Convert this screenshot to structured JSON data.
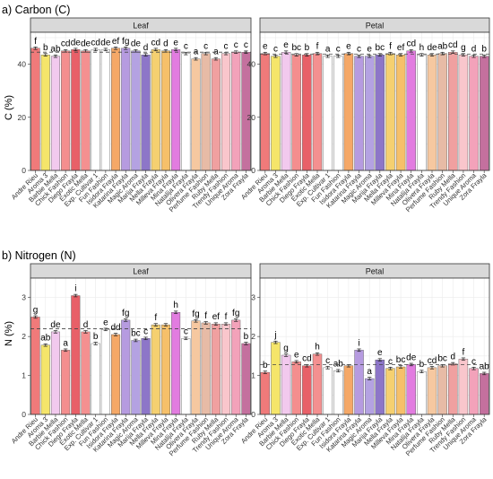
{
  "figure_colors": {
    "panel_bg": "#ffffff",
    "strip_bg": "#d9d9d9",
    "grid": "#ebebeb",
    "border": "#333333",
    "bar_outline": "#555555",
    "dash": "#444444"
  },
  "chart_data": [
    {
      "type": "bar",
      "section_title": "a) Carbon (C)",
      "title": "Leaf",
      "ylabel": "C (%)",
      "ylim": [
        0,
        52
      ],
      "yticks": [
        0,
        20,
        40
      ],
      "grid": true,
      "reference_line": 44.5,
      "categories": [
        "Andre Rieu",
        "Aroma 3",
        "Barbie Mella",
        "Chick Fashion",
        "Diego Frayla",
        "Exotic Mella",
        "Exp. Cultivar 1",
        "Fun Fashion",
        "Isidora Frayla",
        "Katarina Frayla",
        "Magic Aroma",
        "Marija Frayla",
        "Mella Frayla",
        "Milleva Frayla",
        "Mina Frayla",
        "Natalija Frayla",
        "Olivera Frayla",
        "Perfume Fashion",
        "Ruby Mella",
        "Trendy Fashion",
        "Unique Aroma",
        "Zora Frayla"
      ],
      "colors": [
        "#f07a7a",
        "#f5e56a",
        "#f2c9ee",
        "#f48e8e",
        "#e86068",
        "#f49090",
        "#ffffff",
        "#ffffff",
        "#f5a867",
        "#b69be0",
        "#b4a2e2",
        "#8d76c8",
        "#f5d070",
        "#f6c06a",
        "#e27ce0",
        "#ffffff",
        "#f6c8a0",
        "#e7bba6",
        "#f0a0a0",
        "#f9c6cc",
        "#f3a2ba",
        "#c4709e"
      ],
      "values": [
        46.0,
        43.5,
        43.0,
        45.0,
        45.5,
        45.0,
        45.5,
        45.5,
        46.0,
        46.0,
        45.0,
        43.5,
        45.5,
        45.0,
        45.5,
        44.0,
        42.0,
        44.0,
        42.0,
        44.0,
        44.5,
        44.5
      ],
      "labels": [
        "f",
        "b",
        "ab",
        "cd",
        "de",
        "de",
        "cd",
        "de",
        "ef",
        "fg",
        "de",
        "d",
        "cd",
        "d",
        "e",
        "c",
        "a",
        "c",
        "a",
        "c",
        "c",
        "c"
      ]
    },
    {
      "type": "bar",
      "section_title": "",
      "title": "Petal",
      "ylabel": "",
      "ylim": [
        0,
        52
      ],
      "yticks": [
        0,
        20,
        40
      ],
      "grid": true,
      "reference_line": 43.8,
      "categories": [
        "Andre Rieu",
        "Aroma 3",
        "Barbie Mella",
        "Chick Fashion",
        "Diego Frayla",
        "Exotic Mella",
        "Exp. Cultivar 1",
        "Fun Fashion",
        "Isidora Frayla",
        "Katarina Frayla",
        "Magic Aroma",
        "Marija Frayla",
        "Mella Frayla",
        "Milleva Frayla",
        "Mina Frayla",
        "Natalija Frayla",
        "Olivera Frayla",
        "Perfume Fashion",
        "Ruby Mella",
        "Trendy Fashion",
        "Unique Aroma",
        "Zora Frayla"
      ],
      "colors": [
        "#f07a7a",
        "#f5e56a",
        "#f2c9ee",
        "#f48e8e",
        "#e86068",
        "#f49090",
        "#ffffff",
        "#ffffff",
        "#f5a867",
        "#b69be0",
        "#b4a2e2",
        "#8d76c8",
        "#f5d070",
        "#f6c06a",
        "#e27ce0",
        "#ffffff",
        "#f6c8a0",
        "#e7bba6",
        "#f0a0a0",
        "#f9c6cc",
        "#f3a2ba",
        "#c4709e"
      ],
      "values": [
        44.0,
        43.0,
        44.5,
        43.5,
        43.5,
        44.0,
        43.0,
        43.0,
        44.0,
        43.0,
        43.0,
        43.5,
        44.0,
        43.5,
        45.0,
        43.5,
        43.5,
        44.0,
        44.5,
        43.5,
        43.0,
        43.0
      ],
      "labels": [
        "e",
        "c",
        "e",
        "bc",
        "b",
        "f",
        "a",
        "c",
        "e",
        "c",
        "e",
        "bc",
        "f",
        "ef",
        "cd",
        "h",
        "de",
        "ab",
        "cd",
        "g",
        "d",
        "b"
      ]
    },
    {
      "type": "bar",
      "section_title": "b) Nitrogen (N)",
      "title": "Leaf",
      "ylabel": "N (%)",
      "ylim": [
        0,
        3.5
      ],
      "yticks": [
        0,
        1,
        2,
        3
      ],
      "grid": true,
      "reference_line": 2.2,
      "categories": [
        "Andre Rieu",
        "Aroma 3",
        "Barbie Mella",
        "Chick Fashion",
        "Diego Frayla",
        "Exotic Mella",
        "Exp. Cultivar 1",
        "Fun Fashion",
        "Isidora Frayla",
        "Katarina Frayla",
        "Magic Aroma",
        "Marija Frayla",
        "Mella Frayla",
        "Milleva Frayla",
        "Mina Frayla",
        "Natalija Frayla",
        "Olivera Frayla",
        "Perfume Fashion",
        "Ruby Mella",
        "Trendy Fashion",
        "Unique Aroma",
        "Zora Frayla"
      ],
      "colors": [
        "#f07a7a",
        "#f5e56a",
        "#f2c9ee",
        "#f48e8e",
        "#e86068",
        "#f49090",
        "#ffffff",
        "#ffffff",
        "#f5a867",
        "#b69be0",
        "#b4a2e2",
        "#8d76c8",
        "#f5d070",
        "#f6c06a",
        "#e27ce0",
        "#ffffff",
        "#f6c8a0",
        "#e7bba6",
        "#f0a0a0",
        "#f9c6cc",
        "#f3a2ba",
        "#c4709e"
      ],
      "values": [
        2.5,
        1.78,
        2.12,
        1.65,
        3.05,
        2.12,
        1.82,
        2.18,
        2.05,
        2.42,
        1.9,
        1.95,
        2.3,
        2.3,
        2.62,
        1.95,
        2.4,
        2.35,
        2.32,
        2.32,
        2.42,
        1.82
      ],
      "labels": [
        "g",
        "ab",
        "de",
        "a",
        "i",
        "d",
        "b",
        "e",
        "dd",
        "fg",
        "bc",
        "c",
        "f",
        "",
        "h",
        "c",
        "fg",
        "f",
        "ef",
        "f",
        "fg",
        "b"
      ]
    },
    {
      "type": "bar",
      "section_title": "",
      "title": "Petal",
      "ylabel": "",
      "ylim": [
        0,
        3.5
      ],
      "yticks": [
        0,
        1,
        2,
        3
      ],
      "grid": true,
      "reference_line": 1.28,
      "categories": [
        "Andre Rieu",
        "Aroma 3",
        "Barbie Mella",
        "Chick Fashion",
        "Diego Frayla",
        "Exotic Mella",
        "Exp. Cultivar 1",
        "Fun Fashion",
        "Isidora Frayla",
        "Katarina Frayla",
        "Magic Aroma",
        "Marija Frayla",
        "Mella Frayla",
        "Milleva Frayla",
        "Mina Frayla",
        "Natalija Frayla",
        "Olivera Frayla",
        "Perfume Fashion",
        "Ruby Mella",
        "Trendy Fashion",
        "Unique Aroma",
        "Zora Frayla"
      ],
      "colors": [
        "#f07a7a",
        "#f5e56a",
        "#f2c9ee",
        "#f48e8e",
        "#e86068",
        "#f49090",
        "#ffffff",
        "#ffffff",
        "#f5a867",
        "#b69be0",
        "#b4a2e2",
        "#8d76c8",
        "#f5d070",
        "#f6c06a",
        "#e27ce0",
        "#ffffff",
        "#f6c8a0",
        "#e7bba6",
        "#f0a0a0",
        "#f9c6cc",
        "#f3a2ba",
        "#c4709e"
      ],
      "values": [
        1.08,
        1.85,
        1.52,
        1.35,
        1.25,
        1.55,
        1.2,
        1.12,
        1.25,
        1.65,
        0.92,
        1.4,
        1.18,
        1.22,
        1.28,
        1.1,
        1.2,
        1.25,
        1.3,
        1.42,
        1.18,
        1.05
      ],
      "labels": [
        "b",
        "j",
        "g",
        "e",
        "cd",
        "h",
        "c",
        "ab",
        "",
        "i",
        "a",
        "e",
        "c",
        "bc",
        "de",
        "b",
        "cd",
        "bc",
        "d",
        "f",
        "c",
        "ab"
      ]
    }
  ]
}
